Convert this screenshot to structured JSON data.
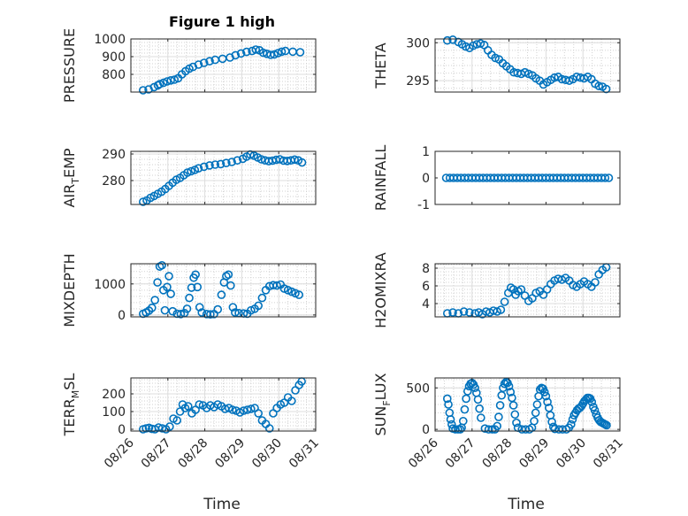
{
  "figure": {
    "title": "Figure 1 high"
  },
  "chart_data": [
    {
      "type": "scatter",
      "ylabel": "PRESSURE",
      "xlim": [
        0,
        5
      ],
      "ylim": [
        700,
        1000
      ],
      "yticks": [
        800,
        900,
        1000
      ],
      "x_tick_labels": [
        "08/26",
        "08/27",
        "08/28",
        "08/29",
        "08/30",
        "08/31"
      ],
      "grid": true,
      "color": "#0072bd",
      "x": [
        0.33,
        0.48,
        0.63,
        0.73,
        0.78,
        0.88,
        0.98,
        1.08,
        1.18,
        1.28,
        1.38,
        1.48,
        1.58,
        1.68,
        1.83,
        1.98,
        2.13,
        2.28,
        2.48,
        2.68,
        2.83,
        2.98,
        3.13,
        3.28,
        3.38,
        3.48,
        3.58,
        3.68,
        3.78,
        3.88,
        3.98,
        4.08,
        4.18,
        4.38,
        4.58
      ],
      "y": [
        710,
        715,
        728,
        738,
        745,
        752,
        760,
        766,
        770,
        778,
        800,
        818,
        832,
        842,
        855,
        865,
        874,
        882,
        888,
        895,
        908,
        918,
        927,
        932,
        940,
        936,
        922,
        916,
        910,
        912,
        920,
        928,
        932,
        928,
        925
      ]
    },
    {
      "type": "scatter",
      "ylabel": "THETA",
      "xlim": [
        0,
        5
      ],
      "ylim": [
        293.5,
        300.5
      ],
      "yticks": [
        295,
        300
      ],
      "x_tick_labels": [
        "08/26",
        "08/27",
        "08/28",
        "08/29",
        "08/30",
        "08/31"
      ],
      "grid": true,
      "color": "#0072bd",
      "x": [
        0.33,
        0.48,
        0.63,
        0.73,
        0.83,
        0.93,
        1.03,
        1.13,
        1.23,
        1.33,
        1.43,
        1.53,
        1.63,
        1.73,
        1.83,
        1.93,
        2.03,
        2.13,
        2.23,
        2.33,
        2.43,
        2.53,
        2.63,
        2.73,
        2.83,
        2.93,
        3.03,
        3.13,
        3.23,
        3.33,
        3.43,
        3.53,
        3.63,
        3.73,
        3.83,
        3.93,
        4.03,
        4.13,
        4.23,
        4.33,
        4.43,
        4.53,
        4.63
      ],
      "y": [
        300.3,
        300.4,
        300.1,
        299.8,
        299.5,
        299.3,
        299.6,
        299.8,
        299.9,
        299.7,
        299.0,
        298.4,
        298.0,
        297.8,
        297.3,
        296.9,
        296.5,
        296.1,
        296.0,
        295.9,
        296.1,
        295.9,
        295.7,
        295.3,
        295.0,
        294.5,
        294.8,
        295.1,
        295.4,
        295.5,
        295.2,
        295.1,
        295.0,
        295.2,
        295.5,
        295.4,
        295.3,
        295.5,
        295.2,
        294.6,
        294.3,
        294.2,
        293.9
      ]
    },
    {
      "type": "scatter",
      "ylabel": "AIR_TEMP",
      "xlim": [
        0,
        5
      ],
      "ylim": [
        271,
        291
      ],
      "yticks": [
        280,
        290
      ],
      "x_tick_labels": [
        "08/26",
        "08/27",
        "08/28",
        "08/29",
        "08/30",
        "08/31"
      ],
      "grid": true,
      "color": "#0072bd",
      "x": [
        0.33,
        0.43,
        0.53,
        0.63,
        0.73,
        0.83,
        0.93,
        1.03,
        1.13,
        1.23,
        1.33,
        1.43,
        1.53,
        1.63,
        1.73,
        1.83,
        1.98,
        2.13,
        2.28,
        2.43,
        2.58,
        2.73,
        2.88,
        3.03,
        3.13,
        3.23,
        3.33,
        3.43,
        3.53,
        3.63,
        3.73,
        3.83,
        3.93,
        4.03,
        4.13,
        4.23,
        4.33,
        4.43,
        4.53,
        4.63
      ],
      "y": [
        272,
        272.5,
        273.5,
        274.2,
        275,
        275.8,
        276.8,
        278,
        279.2,
        280.3,
        281,
        282,
        283,
        283.5,
        284,
        284.6,
        285.2,
        285.7,
        286,
        286.2,
        286.6,
        287,
        287.6,
        288.2,
        289,
        289.8,
        289.4,
        288.7,
        288,
        287.6,
        287.3,
        287.5,
        287.8,
        288,
        287.5,
        287.4,
        287.6,
        287.9,
        287.6,
        286.8
      ]
    },
    {
      "type": "scatter",
      "ylabel": "RAINFALL",
      "xlim": [
        0,
        5
      ],
      "ylim": [
        -1,
        1
      ],
      "yticks": [
        -1,
        0,
        1
      ],
      "x_tick_labels": [
        "08/26",
        "08/27",
        "08/28",
        "08/29",
        "08/30",
        "08/31"
      ],
      "grid": false,
      "color": "#0072bd",
      "x": [
        0.3,
        0.4,
        0.5,
        0.6,
        0.7,
        0.8,
        0.9,
        1.0,
        1.1,
        1.2,
        1.3,
        1.4,
        1.5,
        1.6,
        1.7,
        1.8,
        1.9,
        2.0,
        2.1,
        2.2,
        2.3,
        2.4,
        2.5,
        2.6,
        2.7,
        2.8,
        2.9,
        3.0,
        3.1,
        3.2,
        3.3,
        3.4,
        3.5,
        3.6,
        3.7,
        3.8,
        3.9,
        4.0,
        4.1,
        4.2,
        4.3,
        4.4,
        4.5,
        4.6,
        4.7
      ],
      "y": [
        0,
        0,
        0,
        0,
        0,
        0,
        0,
        0,
        0,
        0,
        0,
        0,
        0,
        0,
        0,
        0,
        0,
        0,
        0,
        0,
        0,
        0,
        0,
        0,
        0,
        0,
        0,
        0,
        0,
        0,
        0,
        0,
        0,
        0,
        0,
        0,
        0,
        0,
        0,
        0,
        0,
        0,
        0,
        0,
        0
      ]
    },
    {
      "type": "scatter",
      "ylabel": "MIXDEPTH",
      "xlim": [
        0,
        5
      ],
      "ylim": [
        -60,
        1650
      ],
      "yticks": [
        0,
        1000
      ],
      "x_tick_labels": [
        "08/26",
        "08/27",
        "08/28",
        "08/29",
        "08/30",
        "08/31"
      ],
      "grid": true,
      "color": "#0072bd",
      "x": [
        0.33,
        0.41,
        0.49,
        0.57,
        0.65,
        0.72,
        0.78,
        0.84,
        0.88,
        0.92,
        0.98,
        1.03,
        1.08,
        1.13,
        1.25,
        1.35,
        1.45,
        1.52,
        1.58,
        1.64,
        1.7,
        1.75,
        1.8,
        1.86,
        1.92,
        2.05,
        2.15,
        2.25,
        2.35,
        2.45,
        2.52,
        2.58,
        2.64,
        2.7,
        2.76,
        2.82,
        2.92,
        3.05,
        3.15,
        3.25,
        3.35,
        3.45,
        3.55,
        3.65,
        3.75,
        3.85,
        3.95,
        4.05,
        4.15,
        4.25,
        4.35,
        4.45,
        4.55
      ],
      "y": [
        40,
        80,
        140,
        230,
        480,
        1050,
        1560,
        1600,
        800,
        150,
        900,
        1250,
        680,
        120,
        40,
        30,
        60,
        200,
        550,
        880,
        1200,
        1300,
        900,
        250,
        80,
        30,
        20,
        30,
        180,
        650,
        1050,
        1250,
        1300,
        950,
        250,
        80,
        60,
        50,
        40,
        150,
        200,
        300,
        550,
        800,
        930,
        960,
        950,
        980,
        850,
        800,
        750,
        700,
        650
      ]
    },
    {
      "type": "scatter",
      "ylabel": "H2OMIXRA",
      "xlim": [
        0,
        5
      ],
      "ylim": [
        2.5,
        8.5
      ],
      "yticks": [
        4,
        6,
        8
      ],
      "x_tick_labels": [
        "08/26",
        "08/27",
        "08/28",
        "08/29",
        "08/30",
        "08/31"
      ],
      "grid": true,
      "color": "#0072bd",
      "x": [
        0.33,
        0.48,
        0.63,
        0.78,
        0.93,
        1.08,
        1.18,
        1.28,
        1.38,
        1.48,
        1.58,
        1.68,
        1.78,
        1.88,
        1.98,
        2.05,
        2.12,
        2.18,
        2.25,
        2.33,
        2.43,
        2.53,
        2.63,
        2.73,
        2.83,
        2.93,
        3.03,
        3.13,
        3.23,
        3.33,
        3.43,
        3.53,
        3.63,
        3.73,
        3.83,
        3.93,
        4.03,
        4.13,
        4.23,
        4.33,
        4.43,
        4.53,
        4.63
      ],
      "y": [
        2.9,
        3.0,
        2.9,
        3.1,
        3.0,
        2.9,
        3.0,
        2.8,
        3.1,
        3.0,
        3.2,
        3.1,
        3.3,
        4.2,
        5.2,
        5.8,
        5.6,
        5.0,
        5.4,
        5.6,
        4.9,
        4.3,
        4.6,
        5.2,
        5.4,
        5.0,
        5.6,
        6.2,
        6.6,
        6.8,
        6.7,
        6.9,
        6.6,
        6.1,
        5.9,
        6.2,
        6.5,
        6.2,
        5.9,
        6.4,
        7.3,
        7.8,
        8.1
      ]
    },
    {
      "type": "scatter",
      "ylabel": "TERR_MSL",
      "xlim": [
        0,
        5
      ],
      "ylim": [
        -10,
        290
      ],
      "yticks": [
        0,
        100,
        200
      ],
      "x_tick_labels": [
        "08/26",
        "08/27",
        "08/28",
        "08/29",
        "08/30",
        "08/31"
      ],
      "grid": true,
      "color": "#0072bd",
      "x": [
        0.33,
        0.41,
        0.49,
        0.57,
        0.65,
        0.75,
        0.85,
        0.95,
        1.05,
        1.15,
        1.25,
        1.33,
        1.4,
        1.47,
        1.55,
        1.65,
        1.75,
        1.85,
        1.95,
        2.05,
        2.15,
        2.25,
        2.35,
        2.45,
        2.55,
        2.65,
        2.75,
        2.85,
        2.95,
        3.05,
        3.15,
        3.25,
        3.35,
        3.45,
        3.55,
        3.65,
        3.75,
        3.85,
        3.95,
        4.05,
        4.15,
        4.25,
        4.35,
        4.45,
        4.55,
        4.62
      ],
      "y": [
        0,
        5,
        8,
        2,
        0,
        10,
        5,
        0,
        15,
        60,
        50,
        100,
        140,
        120,
        130,
        90,
        110,
        140,
        135,
        120,
        135,
        125,
        140,
        130,
        115,
        120,
        110,
        105,
        95,
        105,
        110,
        115,
        120,
        90,
        50,
        30,
        5,
        90,
        120,
        140,
        150,
        180,
        160,
        220,
        250,
        270
      ]
    },
    {
      "type": "scatter",
      "ylabel": "SUN_FLUX",
      "xlim": [
        0,
        5
      ],
      "ylim": [
        -20,
        620
      ],
      "yticks": [
        0,
        500
      ],
      "x_tick_labels": [
        "08/26",
        "08/27",
        "08/28",
        "08/29",
        "08/30",
        "08/31"
      ],
      "grid": true,
      "color": "#0072bd",
      "x": [
        0.33,
        0.36,
        0.39,
        0.42,
        0.45,
        0.48,
        0.55,
        0.62,
        0.68,
        0.72,
        0.76,
        0.8,
        0.84,
        0.88,
        0.92,
        0.96,
        1.0,
        1.04,
        1.08,
        1.12,
        1.16,
        1.2,
        1.24,
        1.35,
        1.45,
        1.55,
        1.62,
        1.68,
        1.72,
        1.76,
        1.8,
        1.84,
        1.88,
        1.92,
        1.96,
        2.0,
        2.04,
        2.08,
        2.12,
        2.16,
        2.2,
        2.24,
        2.35,
        2.45,
        2.55,
        2.62,
        2.68,
        2.72,
        2.76,
        2.8,
        2.84,
        2.88,
        2.92,
        2.96,
        3.0,
        3.04,
        3.08,
        3.12,
        3.16,
        3.2,
        3.24,
        3.35,
        3.45,
        3.55,
        3.62,
        3.68,
        3.72,
        3.76,
        3.8,
        3.84,
        3.88,
        3.92,
        3.96,
        4.0,
        4.04,
        4.08,
        4.12,
        4.16,
        4.2,
        4.24,
        4.28,
        4.32,
        4.36,
        4.4,
        4.44,
        4.48,
        4.52,
        4.56,
        4.6,
        4.64
      ],
      "y": [
        370,
        300,
        200,
        120,
        60,
        10,
        0,
        0,
        0,
        20,
        100,
        240,
        370,
        460,
        520,
        550,
        560,
        540,
        500,
        440,
        360,
        250,
        140,
        10,
        0,
        0,
        0,
        40,
        150,
        290,
        410,
        500,
        550,
        570,
        560,
        520,
        450,
        380,
        290,
        180,
        80,
        20,
        0,
        0,
        0,
        20,
        100,
        200,
        300,
        400,
        480,
        500,
        490,
        450,
        400,
        330,
        260,
        170,
        90,
        30,
        5,
        0,
        0,
        0,
        20,
        60,
        120,
        170,
        200,
        230,
        250,
        260,
        280,
        310,
        340,
        360,
        380,
        380,
        370,
        330,
        270,
        230,
        180,
        140,
        110,
        90,
        80,
        70,
        60,
        50
      ]
    }
  ],
  "axis_label_x": "Time"
}
